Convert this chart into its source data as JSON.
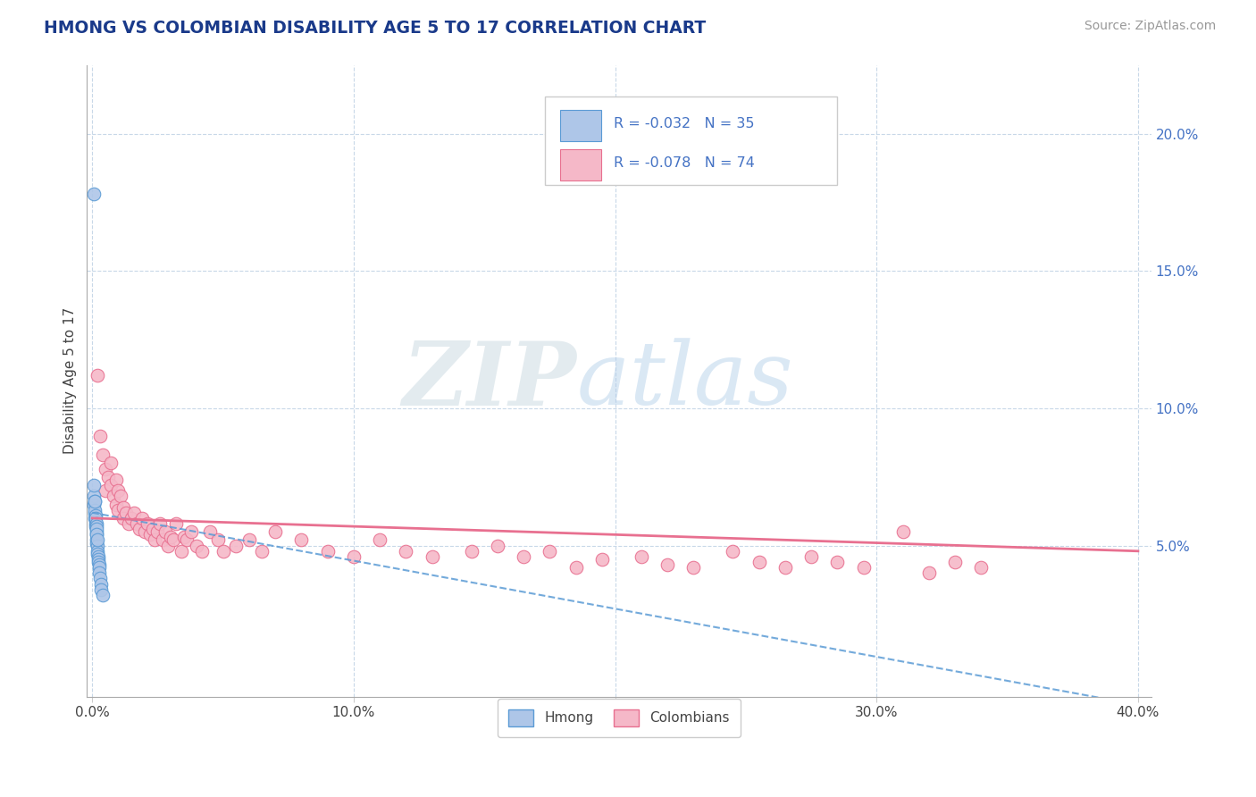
{
  "title": "HMONG VS COLOMBIAN DISABILITY AGE 5 TO 17 CORRELATION CHART",
  "source_text": "Source: ZipAtlas.com",
  "ylabel": "Disability Age 5 to 17",
  "xlim": [
    -0.002,
    0.405
  ],
  "ylim": [
    -0.005,
    0.225
  ],
  "xtick_labels": [
    "0.0%",
    "10.0%",
    "20.0%",
    "30.0%",
    "40.0%"
  ],
  "xtick_values": [
    0.0,
    0.1,
    0.2,
    0.3,
    0.4
  ],
  "ytick_labels_right": [
    "5.0%",
    "10.0%",
    "15.0%",
    "20.0%"
  ],
  "ytick_values_right": [
    0.05,
    0.1,
    0.15,
    0.2
  ],
  "hmong_color": "#aec6e8",
  "hmong_edge_color": "#5b9bd5",
  "colombian_color": "#f5b8c8",
  "colombian_edge_color": "#e87090",
  "hmong_R": -0.032,
  "hmong_N": 35,
  "colombian_R": -0.078,
  "colombian_N": 74,
  "watermark_zip": "ZIP",
  "watermark_atlas": "atlas",
  "background_color": "#ffffff",
  "grid_color": "#c8d8e8",
  "title_color": "#1a3a8a",
  "source_color": "#999999",
  "axis_label_color": "#444444",
  "tick_color": "#444444",
  "right_tick_color": "#4472c4",
  "hmong_scatter_x": [
    0.0005,
    0.0006,
    0.0007,
    0.0007,
    0.0008,
    0.0009,
    0.001,
    0.001,
    0.001,
    0.0012,
    0.0012,
    0.0013,
    0.0014,
    0.0015,
    0.0015,
    0.0016,
    0.0016,
    0.0017,
    0.0017,
    0.0018,
    0.0018,
    0.0019,
    0.002,
    0.002,
    0.0021,
    0.0022,
    0.0023,
    0.0024,
    0.0025,
    0.0026,
    0.0028,
    0.003,
    0.0032,
    0.0035,
    0.004
  ],
  "hmong_scatter_y": [
    0.178,
    0.065,
    0.068,
    0.072,
    0.062,
    0.066,
    0.06,
    0.063,
    0.066,
    0.058,
    0.061,
    0.06,
    0.057,
    0.055,
    0.058,
    0.054,
    0.057,
    0.052,
    0.056,
    0.051,
    0.054,
    0.05,
    0.048,
    0.052,
    0.047,
    0.046,
    0.045,
    0.044,
    0.043,
    0.042,
    0.04,
    0.038,
    0.036,
    0.034,
    0.032
  ],
  "colombian_scatter_x": [
    0.002,
    0.003,
    0.004,
    0.005,
    0.005,
    0.006,
    0.007,
    0.007,
    0.008,
    0.009,
    0.009,
    0.01,
    0.01,
    0.011,
    0.012,
    0.012,
    0.013,
    0.014,
    0.015,
    0.016,
    0.017,
    0.018,
    0.019,
    0.02,
    0.021,
    0.022,
    0.023,
    0.024,
    0.025,
    0.026,
    0.027,
    0.028,
    0.029,
    0.03,
    0.031,
    0.032,
    0.034,
    0.035,
    0.036,
    0.038,
    0.04,
    0.042,
    0.045,
    0.048,
    0.05,
    0.055,
    0.06,
    0.065,
    0.07,
    0.08,
    0.09,
    0.1,
    0.11,
    0.12,
    0.13,
    0.145,
    0.155,
    0.165,
    0.175,
    0.185,
    0.195,
    0.21,
    0.22,
    0.23,
    0.245,
    0.255,
    0.265,
    0.275,
    0.285,
    0.295,
    0.31,
    0.32,
    0.33,
    0.34
  ],
  "colombian_scatter_y": [
    0.112,
    0.09,
    0.083,
    0.078,
    0.07,
    0.075,
    0.072,
    0.08,
    0.068,
    0.074,
    0.065,
    0.07,
    0.063,
    0.068,
    0.064,
    0.06,
    0.062,
    0.058,
    0.06,
    0.062,
    0.058,
    0.056,
    0.06,
    0.055,
    0.058,
    0.054,
    0.056,
    0.052,
    0.055,
    0.058,
    0.052,
    0.055,
    0.05,
    0.053,
    0.052,
    0.058,
    0.048,
    0.053,
    0.052,
    0.055,
    0.05,
    0.048,
    0.055,
    0.052,
    0.048,
    0.05,
    0.052,
    0.048,
    0.055,
    0.052,
    0.048,
    0.046,
    0.052,
    0.048,
    0.046,
    0.048,
    0.05,
    0.046,
    0.048,
    0.042,
    0.045,
    0.046,
    0.043,
    0.042,
    0.048,
    0.044,
    0.042,
    0.046,
    0.044,
    0.042,
    0.055,
    0.04,
    0.044,
    0.042
  ],
  "hmong_trendline_x": [
    0.0,
    0.4
  ],
  "hmong_trendline_y": [
    0.062,
    -0.008
  ],
  "colombian_trendline_x": [
    0.0,
    0.4
  ],
  "colombian_trendline_y": [
    0.06,
    0.048
  ]
}
